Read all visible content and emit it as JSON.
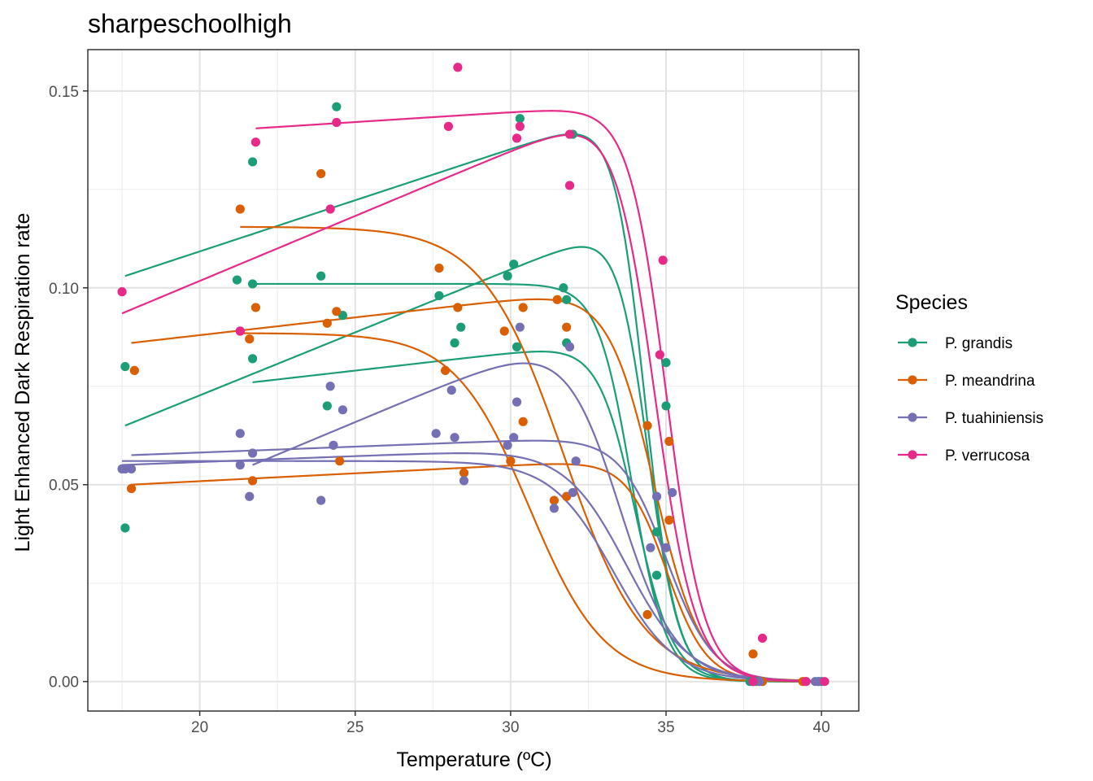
{
  "chart_data": {
    "type": "scatter",
    "title": "sharpeschoolhigh",
    "xlabel": "Temperature (ºC)",
    "ylabel": "Light Enhanced Dark Respiration rate",
    "xlim": [
      16.4,
      41.2
    ],
    "ylim": [
      -0.0075,
      0.1605
    ],
    "x_ticks": [
      20,
      25,
      30,
      35,
      40
    ],
    "y_ticks": [
      0.0,
      0.05,
      0.1,
      0.15
    ],
    "x_tick_labels": [
      "20",
      "25",
      "30",
      "35",
      "40"
    ],
    "y_tick_labels": [
      "0.00",
      "0.05",
      "0.10",
      "0.15"
    ],
    "grid": true,
    "legend": {
      "title": "Species",
      "position": "right"
    },
    "series": [
      {
        "name": "P. grandis",
        "color": "#1b9e77",
        "points": [
          [
            17.6,
            0.08
          ],
          [
            17.6,
            0.039
          ],
          [
            21.2,
            0.102
          ],
          [
            21.7,
            0.132
          ],
          [
            21.7,
            0.101
          ],
          [
            21.7,
            0.082
          ],
          [
            23.9,
            0.103
          ],
          [
            24.1,
            0.07
          ],
          [
            24.4,
            0.146
          ],
          [
            24.6,
            0.093
          ],
          [
            27.7,
            0.098
          ],
          [
            28.2,
            0.086
          ],
          [
            28.4,
            0.09
          ],
          [
            29.9,
            0.103
          ],
          [
            30.1,
            0.106
          ],
          [
            30.2,
            0.085
          ],
          [
            30.3,
            0.143
          ],
          [
            31.7,
            0.1
          ],
          [
            31.8,
            0.097
          ],
          [
            31.8,
            0.086
          ],
          [
            32.0,
            0.139
          ],
          [
            34.7,
            0.038
          ],
          [
            34.7,
            0.027
          ],
          [
            35.0,
            0.081
          ],
          [
            35.0,
            0.07
          ],
          [
            37.7,
            0.0
          ],
          [
            37.9,
            0.0
          ],
          [
            38.0,
            0.0
          ],
          [
            39.9,
            0.0
          ],
          [
            40.0,
            0.0
          ]
        ],
        "curves": [
          {
            "tmin": 17.6,
            "tmax": 40.0,
            "r0": 0.103,
            "slope": 0.0026,
            "th": 34.3,
            "w": 0.5
          },
          {
            "tmin": 21.7,
            "tmax": 40.0,
            "r0": 0.101,
            "slope": 0.0,
            "th": 33.9,
            "w": 0.55
          },
          {
            "tmin": 17.6,
            "tmax": 40.0,
            "r0": 0.065,
            "slope": 0.0032,
            "th": 34.4,
            "w": 0.5
          },
          {
            "tmin": 21.7,
            "tmax": 40.0,
            "r0": 0.076,
            "slope": 0.0009,
            "th": 34.0,
            "w": 0.6
          }
        ]
      },
      {
        "name": "P. meandrina",
        "color": "#d95f02",
        "points": [
          [
            17.9,
            0.079
          ],
          [
            17.8,
            0.049
          ],
          [
            21.3,
            0.12
          ],
          [
            21.3,
            0.089
          ],
          [
            21.6,
            0.087
          ],
          [
            21.7,
            0.051
          ],
          [
            21.8,
            0.095
          ],
          [
            23.9,
            0.129
          ],
          [
            24.1,
            0.091
          ],
          [
            24.4,
            0.094
          ],
          [
            24.5,
            0.056
          ],
          [
            27.7,
            0.105
          ],
          [
            27.9,
            0.079
          ],
          [
            28.3,
            0.095
          ],
          [
            28.5,
            0.053
          ],
          [
            29.8,
            0.089
          ],
          [
            30.0,
            0.056
          ],
          [
            30.4,
            0.095
          ],
          [
            30.4,
            0.066
          ],
          [
            31.4,
            0.046
          ],
          [
            31.5,
            0.097
          ],
          [
            31.8,
            0.047
          ],
          [
            31.8,
            0.09
          ],
          [
            34.4,
            0.065
          ],
          [
            34.4,
            0.017
          ],
          [
            35.1,
            0.061
          ],
          [
            35.1,
            0.041
          ],
          [
            37.8,
            0.007
          ],
          [
            37.8,
            0.0
          ],
          [
            38.1,
            0.0
          ],
          [
            39.4,
            0.0
          ],
          [
            39.5,
            0.0
          ]
        ],
        "curves": [
          {
            "tmin": 21.3,
            "tmax": 39.5,
            "r0": 0.1155,
            "slope": 0.0,
            "th": 31.7,
            "w": 1.3
          },
          {
            "tmin": 21.3,
            "tmax": 39.5,
            "r0": 0.0885,
            "slope": 0.0,
            "th": 30.6,
            "w": 1.2
          },
          {
            "tmin": 17.8,
            "tmax": 39.5,
            "r0": 0.086,
            "slope": 0.0009,
            "th": 34.6,
            "w": 0.75
          },
          {
            "tmin": 17.8,
            "tmax": 39.5,
            "r0": 0.05,
            "slope": 0.0004,
            "th": 35.0,
            "w": 0.65
          }
        ]
      },
      {
        "name": "P. tuahiniensis",
        "color": "#7570b3",
        "points": [
          [
            17.5,
            0.054
          ],
          [
            17.6,
            0.054
          ],
          [
            17.8,
            0.054
          ],
          [
            21.3,
            0.063
          ],
          [
            21.3,
            0.055
          ],
          [
            21.6,
            0.047
          ],
          [
            21.7,
            0.058
          ],
          [
            23.9,
            0.046
          ],
          [
            24.2,
            0.075
          ],
          [
            24.3,
            0.06
          ],
          [
            24.6,
            0.069
          ],
          [
            27.6,
            0.063
          ],
          [
            28.1,
            0.074
          ],
          [
            28.2,
            0.062
          ],
          [
            28.5,
            0.051
          ],
          [
            29.9,
            0.06
          ],
          [
            30.1,
            0.062
          ],
          [
            30.2,
            0.071
          ],
          [
            30.3,
            0.09
          ],
          [
            31.4,
            0.044
          ],
          [
            31.9,
            0.085
          ],
          [
            32.0,
            0.048
          ],
          [
            32.1,
            0.056
          ],
          [
            34.5,
            0.034
          ],
          [
            34.7,
            0.047
          ],
          [
            35.0,
            0.034
          ],
          [
            35.2,
            0.048
          ],
          [
            37.8,
            0.0
          ],
          [
            38.0,
            0.0
          ],
          [
            39.8,
            0.0
          ],
          [
            39.9,
            0.0
          ]
        ],
        "curves": [
          {
            "tmin": 21.7,
            "tmax": 39.9,
            "r0": 0.055,
            "slope": 0.0033,
            "th": 33.4,
            "w": 0.9
          },
          {
            "tmin": 17.8,
            "tmax": 39.9,
            "r0": 0.0575,
            "slope": 0.0003,
            "th": 35.0,
            "w": 0.75
          },
          {
            "tmin": 17.5,
            "tmax": 39.9,
            "r0": 0.055,
            "slope": 0.0003,
            "th": 33.7,
            "w": 1.0
          },
          {
            "tmin": 17.5,
            "tmax": 39.9,
            "r0": 0.056,
            "slope": 0.0,
            "th": 33.3,
            "w": 1.0
          }
        ]
      },
      {
        "name": "P. verrucosa",
        "color": "#e7298a",
        "points": [
          [
            17.5,
            0.099
          ],
          [
            21.3,
            0.089
          ],
          [
            21.8,
            0.137
          ],
          [
            24.2,
            0.12
          ],
          [
            24.4,
            0.142
          ],
          [
            28.0,
            0.141
          ],
          [
            28.3,
            0.156
          ],
          [
            30.2,
            0.138
          ],
          [
            30.3,
            0.141
          ],
          [
            31.9,
            0.126
          ],
          [
            31.9,
            0.139
          ],
          [
            34.8,
            0.083
          ],
          [
            34.9,
            0.107
          ],
          [
            38.1,
            0.011
          ],
          [
            37.8,
            0.0
          ],
          [
            39.5,
            0.0
          ],
          [
            40.1,
            0.0
          ]
        ],
        "curves": [
          {
            "tmin": 21.8,
            "tmax": 40.1,
            "r0": 0.1405,
            "slope": 0.0005,
            "th": 35.0,
            "w": 0.6
          },
          {
            "tmin": 17.5,
            "tmax": 40.1,
            "r0": 0.0935,
            "slope": 0.0033,
            "th": 34.6,
            "w": 0.65
          }
        ]
      }
    ]
  }
}
